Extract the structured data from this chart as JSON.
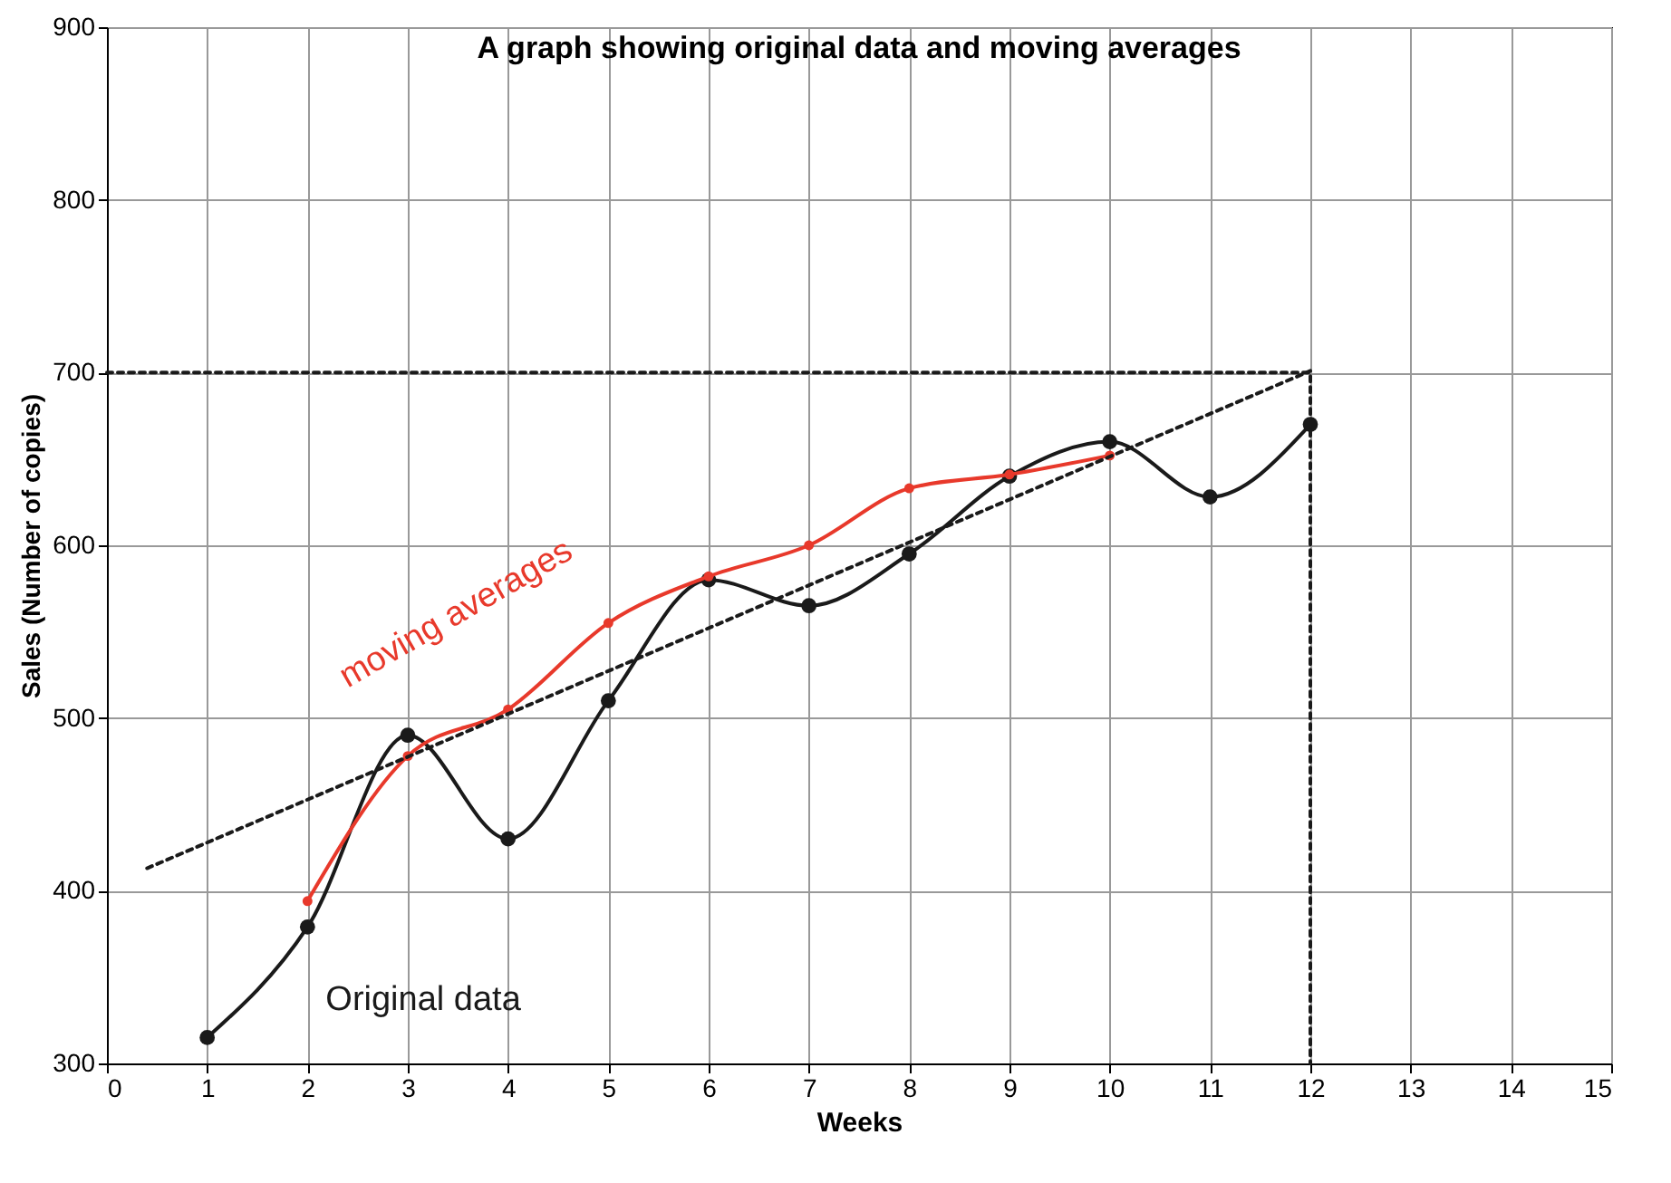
{
  "chart_data": {
    "type": "line",
    "title": "A graph showing original data and moving averages",
    "xlabel": "Weeks",
    "ylabel": "Sales (Number of copies)",
    "series": [
      {
        "name": "Original data",
        "color": "#1a1a1a",
        "x": [
          1,
          2,
          3,
          4,
          5,
          6,
          7,
          8,
          9,
          10,
          11,
          12
        ],
        "values": [
          315,
          379,
          490,
          430,
          510,
          580,
          565,
          595,
          640,
          660,
          628,
          670
        ],
        "marker": "circle",
        "line_style": "solid"
      },
      {
        "name": "moving averages",
        "color": "#e8392b",
        "x": [
          2,
          3,
          4,
          5,
          6,
          7,
          8,
          9,
          10
        ],
        "values": [
          394,
          478,
          505,
          555,
          582,
          600,
          633,
          641,
          652
        ],
        "marker": "circle",
        "line_style": "solid"
      },
      {
        "color": "#1a1a1a",
        "x": [
          0.4,
          12
        ],
        "values": [
          413,
          701
        ],
        "marker": "none",
        "line_style": "dotted"
      },
      {
        "color": "#1a1a1a",
        "x": [
          0,
          12,
          12
        ],
        "values": [
          700,
          700,
          300
        ],
        "marker": "none",
        "line_style": "dotted"
      }
    ],
    "xlim": [
      0,
      15
    ],
    "xticks": [
      0,
      1,
      2,
      3,
      4,
      5,
      6,
      7,
      8,
      9,
      10,
      11,
      12,
      13,
      14,
      15
    ],
    "ylim": [
      300,
      900
    ],
    "yticks": [
      300,
      400,
      500,
      600,
      700,
      800,
      900
    ],
    "grid": true
  }
}
